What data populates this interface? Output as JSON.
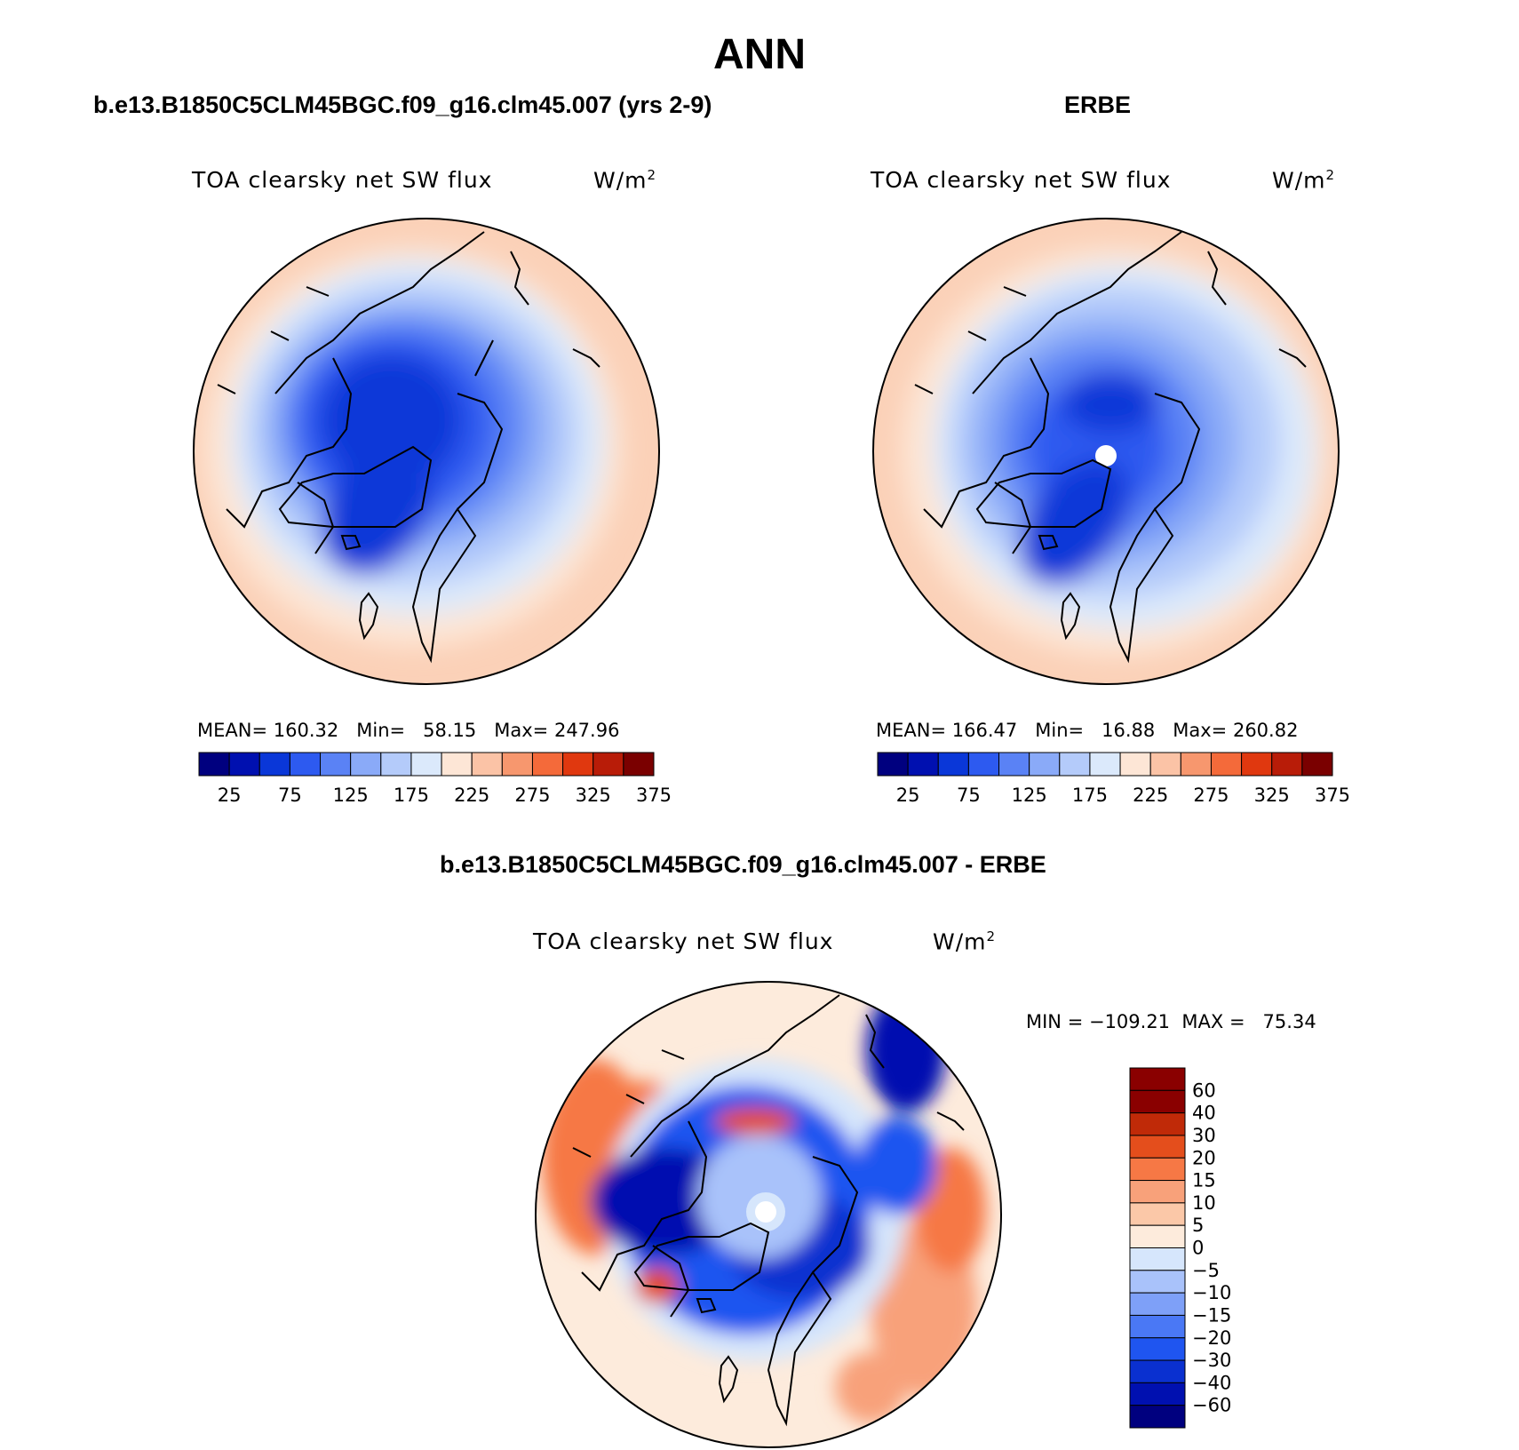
{
  "title": "ANN",
  "panels": [
    {
      "title": "b.e13.B1850C5CLM45BGC.f09_g16.clm45.007 (yrs 2-9)",
      "variable": "TOA clearsky net SW flux",
      "units_base": "W/m",
      "units_exp": "2",
      "stats": "MEAN= 160.32   Min=   58.15   Max= 247.96"
    },
    {
      "title": "ERBE",
      "variable": "TOA clearsky net SW flux",
      "units_base": "W/m",
      "units_exp": "2",
      "stats": "MEAN= 166.47   Min=   16.88   Max= 260.82"
    },
    {
      "title": "b.e13.B1850C5CLM45BGC.f09_g16.clm45.007 - ERBE",
      "variable": "TOA clearsky net SW flux",
      "units_base": "W/m",
      "units_exp": "2",
      "stats": "MIN = −109.21  MAX =   75.34"
    }
  ],
  "colorbar_abs": {
    "colors": [
      "#00007f",
      "#0010b0",
      "#0a37d8",
      "#2d5af0",
      "#5a82f5",
      "#8aaaf8",
      "#b4cbfa",
      "#dbe9fb",
      "#fde6d6",
      "#fbc3a6",
      "#f7976e",
      "#f46a3a",
      "#e0380f",
      "#b81c08",
      "#7a0000"
    ],
    "ticks": [
      "25",
      "75",
      "125",
      "175",
      "225",
      "275",
      "325",
      "375"
    ]
  },
  "colorbar_diff": {
    "colors": [
      "#00007f",
      "#0010b0",
      "#0a30d0",
      "#1f55f0",
      "#4a78f5",
      "#7ea0f8",
      "#a9c2fa",
      "#d6e6fc",
      "#fdebdc",
      "#fbc8a8",
      "#f8a17a",
      "#f67845",
      "#e44e1c",
      "#c02a08",
      "#8a0000"
    ],
    "ticks": [
      "60",
      "40",
      "30",
      "20",
      "15",
      "10",
      "5",
      "0",
      "−5",
      "−10",
      "−15",
      "−20",
      "−30",
      "−40",
      "−60"
    ]
  },
  "chart_data": [
    {
      "type": "heatmap",
      "projection": "north polar stereographic",
      "title": "b.e13.B1850C5CLM45BGC.f09_g16.clm45.007 (yrs 2-9)",
      "variable": "TOA clearsky net SW flux",
      "units": "W/m2",
      "mean": 160.32,
      "min": 58.15,
      "max": 247.96,
      "contour_levels": [
        25,
        50,
        75,
        100,
        125,
        150,
        175,
        200,
        225,
        250,
        275,
        300,
        325,
        350,
        375
      ]
    },
    {
      "type": "heatmap",
      "projection": "north polar stereographic",
      "title": "ERBE",
      "variable": "TOA clearsky net SW flux",
      "units": "W/m2",
      "mean": 166.47,
      "min": 16.88,
      "max": 260.82,
      "contour_levels": [
        25,
        50,
        75,
        100,
        125,
        150,
        175,
        200,
        225,
        250,
        275,
        300,
        325,
        350,
        375
      ]
    },
    {
      "type": "heatmap",
      "projection": "north polar stereographic",
      "title": "b.e13.B1850C5CLM45BGC.f09_g16.clm45.007 - ERBE",
      "variable": "TOA clearsky net SW flux",
      "units": "W/m2",
      "min": -109.21,
      "max": 75.34,
      "contour_levels": [
        -60,
        -40,
        -30,
        -20,
        -15,
        -10,
        -5,
        0,
        5,
        10,
        15,
        20,
        30,
        40,
        60
      ]
    }
  ]
}
